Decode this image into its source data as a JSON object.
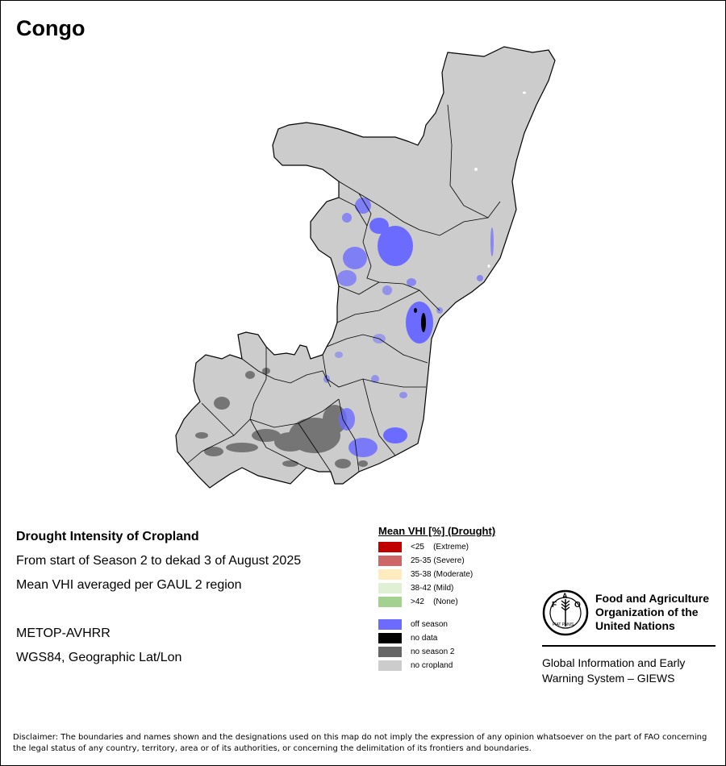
{
  "map": {
    "country": "Congo",
    "colors": {
      "no_cropland": "#cccccc",
      "no_season": "#666666",
      "off_season": "#6b6bff",
      "no_data": "#000000",
      "border": "#000000"
    }
  },
  "info": {
    "heading": "Drought Intensity of Cropland",
    "period": "From start of Season 2 to dekad 3 of August 2025",
    "method": "Mean VHI averaged per GAUL 2 region",
    "sensor": "METOP-AVHRR",
    "projection": "WGS84, Geographic Lat/Lon"
  },
  "legend": {
    "title": "Mean VHI [%] (Drought)",
    "items": [
      {
        "label": "<25    (Extreme)",
        "color": "#c00000"
      },
      {
        "label": "25-35 (Severe)",
        "color": "#cd6666"
      },
      {
        "label": "35-38 (Moderate)",
        "color": "#ffebbe"
      },
      {
        "label": "38-42 (Mild)",
        "color": "#dff0d5"
      },
      {
        "label": ">42    (None)",
        "color": "#a3d18f"
      },
      {
        "label": "off season",
        "color": "#6b6bff"
      },
      {
        "label": "no data",
        "color": "#000000"
      },
      {
        "label": "no season 2",
        "color": "#666666"
      },
      {
        "label": "no cropland",
        "color": "#cccccc"
      }
    ]
  },
  "fao": {
    "org_line1": "Food and Agriculture",
    "org_line2": "Organization of the",
    "org_line3": "United Nations",
    "giews_line1": "Global Information and Early",
    "giews_line2": "Warning System – GIEWS",
    "logo_text": "FAO",
    "logo_motto": "FIAT PANIS"
  },
  "disclaimer": "Disclaimer: The boundaries and names shown and the designations used on this map do not imply the expression of any opinion whatsoever on the part of FAO concerning the legal status of any country, territory, area or of its authorities, or concerning the delimitation of its frontiers and boundaries."
}
